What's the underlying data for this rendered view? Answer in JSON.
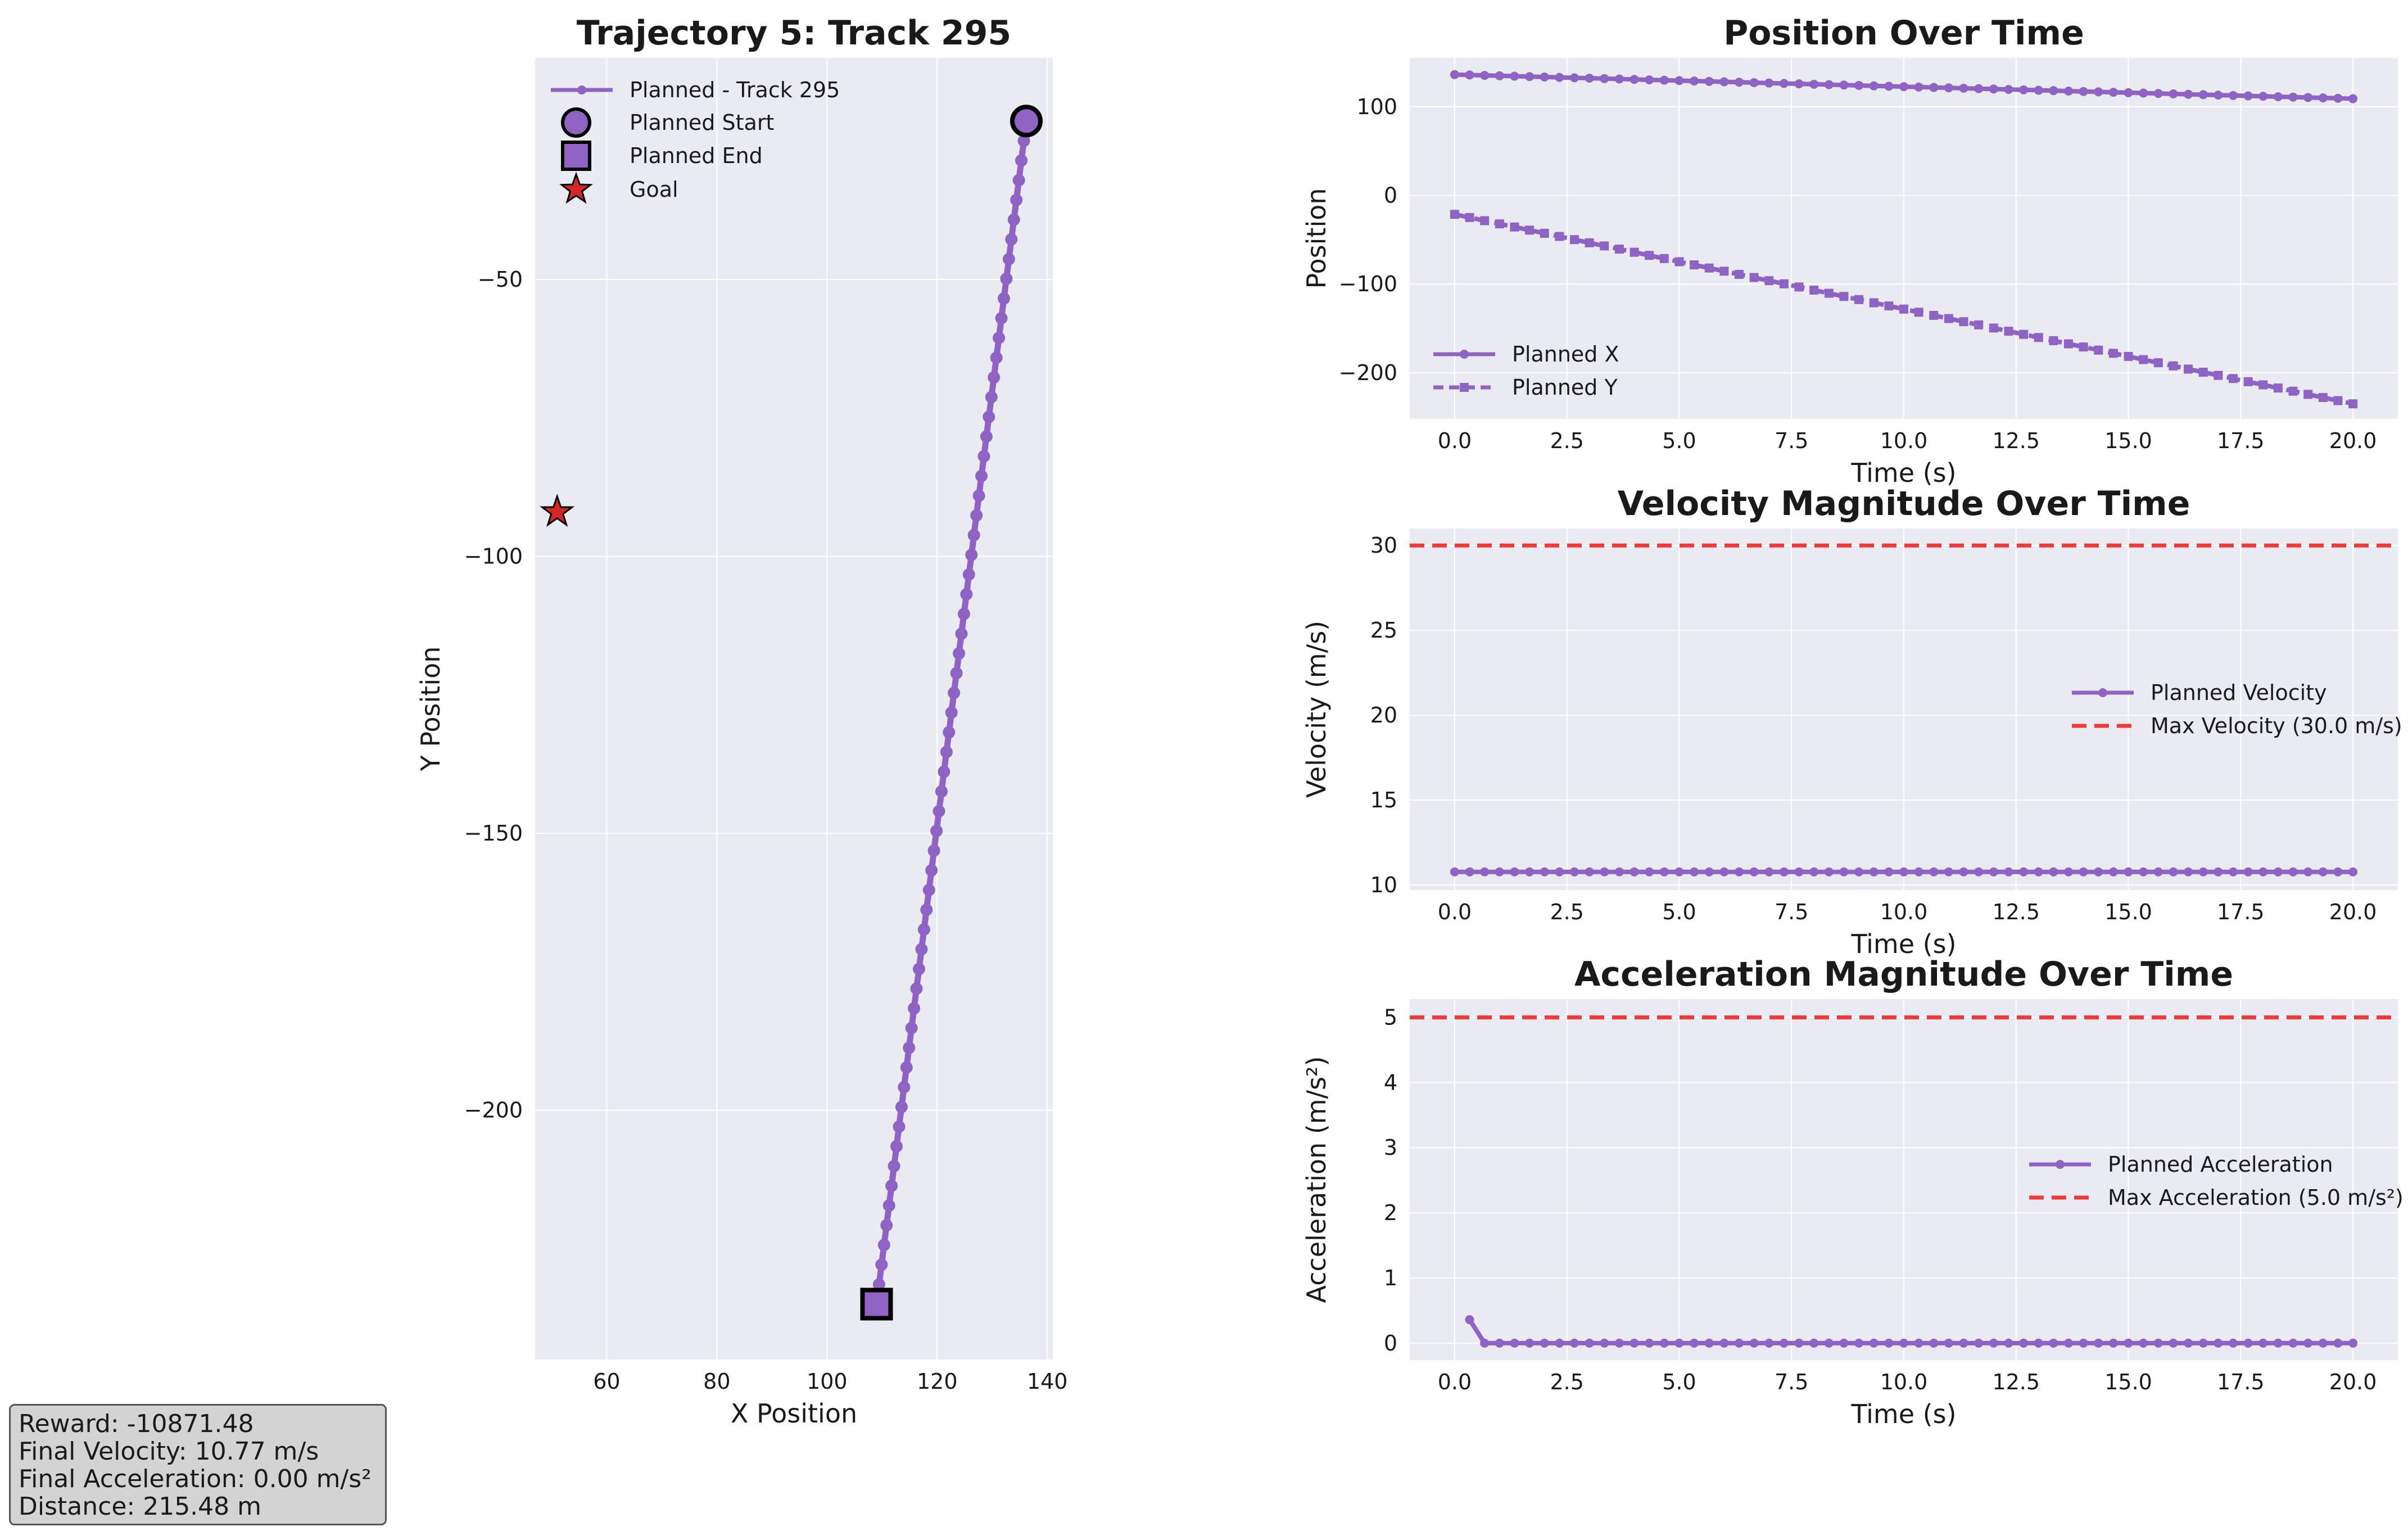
{
  "colors": {
    "accent": "#8e63c4",
    "marker_edge": "#000000",
    "goal": "#d62728",
    "limit": "#f03a3a",
    "panel_bg": "#eaeaf2"
  },
  "stats": [
    "Reward: -10871.48",
    "Final Velocity: 10.77 m/s",
    "Final Acceleration: 0.00 m/s²",
    "Distance: 215.48 m"
  ],
  "chart_data": [
    {
      "type": "line",
      "title": "Trajectory 5: Track 295",
      "xlabel": "X Position",
      "ylabel": "Y Position",
      "xlim": [
        47,
        141
      ],
      "ylim": [
        -245,
        -10
      ],
      "xticks": [
        60,
        80,
        100,
        120,
        140
      ],
      "yticks": [
        -50,
        -100,
        -150,
        -200
      ],
      "legend_position": "upper-left",
      "grid": true,
      "series": [
        {
          "name": "Planned - Track 295",
          "marker": "circle",
          "start": [
            136.2,
            -21.4
          ],
          "end": [
            109.0,
            -235.0
          ],
          "points": 61
        }
      ],
      "markers": [
        {
          "name": "Planned Start",
          "shape": "circle",
          "x": 136.2,
          "y": -21.4
        },
        {
          "name": "Planned End",
          "shape": "square",
          "x": 109.0,
          "y": -235.0
        },
        {
          "name": "Goal",
          "shape": "star",
          "x": 51.0,
          "y": -92.0
        }
      ]
    },
    {
      "type": "line",
      "title": "Position Over Time",
      "xlabel": "Time (s)",
      "ylabel": "Position",
      "xlim": [
        -1,
        21
      ],
      "ylim": [
        -252,
        155
      ],
      "xticks": [
        0.0,
        2.5,
        5.0,
        7.5,
        10.0,
        12.5,
        15.0,
        17.5,
        20.0
      ],
      "yticks": [
        100,
        0,
        -100,
        -200
      ],
      "legend_position": "lower-left",
      "grid": true,
      "series": [
        {
          "name": "Planned X",
          "style": "solid",
          "marker": "circle",
          "t_range": [
            0,
            20
          ],
          "points": 61,
          "start": 136.2,
          "end": 109.0
        },
        {
          "name": "Planned Y",
          "style": "dashed",
          "marker": "square",
          "t_range": [
            0,
            20
          ],
          "points": 61,
          "start": -21.4,
          "end": -235.0
        }
      ]
    },
    {
      "type": "line",
      "title": "Velocity Magnitude Over Time",
      "xlabel": "Time (s)",
      "ylabel": "Velocity (m/s)",
      "xlim": [
        -1,
        21
      ],
      "ylim": [
        9.7,
        31.0
      ],
      "xticks": [
        0.0,
        2.5,
        5.0,
        7.5,
        10.0,
        12.5,
        15.0,
        17.5,
        20.0
      ],
      "yticks": [
        10,
        15,
        20,
        25,
        30
      ],
      "legend_position": "center-right",
      "grid": true,
      "series": [
        {
          "name": "Planned Velocity",
          "style": "solid",
          "marker": "circle",
          "t_range": [
            0,
            20
          ],
          "points": 61,
          "value": 10.77
        },
        {
          "name": "Max Velocity (30.0 m/s)",
          "style": "dashed",
          "value": 30.0
        }
      ]
    },
    {
      "type": "line",
      "title": "Acceleration Magnitude Over Time",
      "xlabel": "Time (s)",
      "ylabel": "Acceleration (m/s²)",
      "xlim": [
        -1,
        21
      ],
      "ylim": [
        -0.26,
        5.28
      ],
      "xticks": [
        0.0,
        2.5,
        5.0,
        7.5,
        10.0,
        12.5,
        15.0,
        17.5,
        20.0
      ],
      "yticks": [
        0,
        1,
        2,
        3,
        4,
        5
      ],
      "legend_position": "center-right",
      "grid": true,
      "series": [
        {
          "name": "Planned Acceleration",
          "style": "solid",
          "marker": "circle",
          "t_range": [
            0.333,
            20
          ],
          "points": 60,
          "first": 0.36,
          "rest": 0.0
        },
        {
          "name": "Max Acceleration (5.0 m/s²)",
          "style": "dashed",
          "value": 5.0
        }
      ]
    }
  ]
}
